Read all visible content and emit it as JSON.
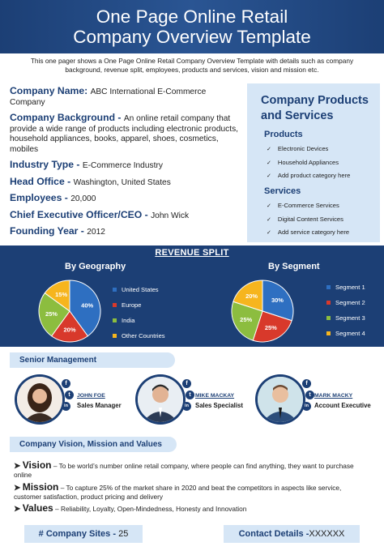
{
  "header": {
    "title_line1": "One Page Online Retail",
    "title_line2": "Company Overview Template"
  },
  "intro": "This one pager shows a One Page Online Retail Company Overview Template with details such as company background, revenue split, employees, products and services, vision and mission etc.",
  "company_info": [
    {
      "label": "Company Name",
      "value": "ABC International E-Commerce Company"
    },
    {
      "label": "Company Background",
      "value": "An online retail company that provide a wide range of products including electronic products, household appliances, books, apparel, shoes, cosmetics, mobiles"
    },
    {
      "label": "Industry Type",
      "value": "E-Commerce Industry"
    },
    {
      "label": "Head Office",
      "value": "Washington, United States"
    },
    {
      "label": "Employees",
      "value": "20,000"
    },
    {
      "label": "Chief Executive Officer/CEO",
      "value": "John Wick"
    },
    {
      "label": "Founding Year",
      "value": "2012"
    }
  ],
  "products_services": {
    "title": "Company Products and Services",
    "products_heading": "Products",
    "products": [
      "Electronic Devices",
      "Household Appliances",
      "Add product category here"
    ],
    "services_heading": "Services",
    "services": [
      "E-Commerce Services",
      "Digital Content Services",
      "Add service category here"
    ]
  },
  "revenue": {
    "title": "REVENUE SPLIT"
  },
  "chart_data": [
    {
      "type": "pie",
      "title": "By Geography",
      "categories": [
        "United States",
        "Europe",
        "India",
        "Other Countries"
      ],
      "values": [
        40,
        20,
        25,
        15
      ],
      "labels": [
        "40%",
        "20%",
        "25%",
        "15%"
      ],
      "colors": [
        "#2e6fc1",
        "#d8392b",
        "#8cbd3f",
        "#f6b51e"
      ],
      "legend": "right"
    },
    {
      "type": "pie",
      "title": "By Segment",
      "categories": [
        "Segment 1",
        "Segment 2",
        "Segment 3",
        "Segment 4"
      ],
      "values": [
        30,
        25,
        25,
        20
      ],
      "labels": [
        "30%",
        "25%",
        "25%",
        "20%"
      ],
      "colors": [
        "#2e6fc1",
        "#d8392b",
        "#8cbd3f",
        "#f6b51e"
      ],
      "legend": "right"
    }
  ],
  "management": {
    "heading": "Senior Management",
    "members": [
      {
        "name": "JOHN FOE",
        "role": "Sales Manager"
      },
      {
        "name": "MIKE MACKAY",
        "role": "Sales Specialist"
      },
      {
        "name": "MARK MACKY",
        "role": "Account Executive"
      }
    ],
    "social_icons": [
      "f",
      "t",
      "in"
    ]
  },
  "vision_section": {
    "heading": "Company Vision, Mission and Values",
    "items": [
      {
        "label": "Vision",
        "text": "– To be world’s number online retail company, where people can find anything, they want to purchase online"
      },
      {
        "label": "Mission",
        "text": "– To capture 25% of the market share in 2020 and beat the competitors in aspects like service, customer satisfaction, product pricing and delivery"
      },
      {
        "label": "Values",
        "text": "– Reliability, Loyalty, Open-Mindedness, Honesty and Innovation"
      }
    ]
  },
  "footer": {
    "sites_label": "# Company Sites -",
    "sites_value": "25",
    "contact_label": "Contact Details -",
    "contact_value": "XXXXXX"
  }
}
